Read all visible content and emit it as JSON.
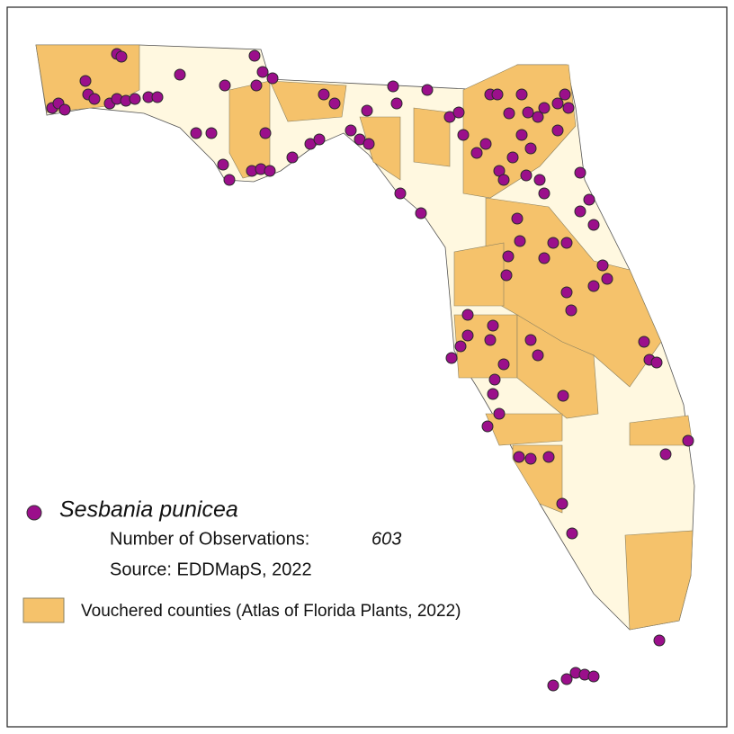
{
  "legend": {
    "species": "Sesbania punicea",
    "observations_label": "Number of Observations:",
    "observations_count": 603,
    "source": "Source: EDDMapS, 2022",
    "vouchered": "Vouchered counties (Atlas of Florida Plants, 2022)"
  }
}
